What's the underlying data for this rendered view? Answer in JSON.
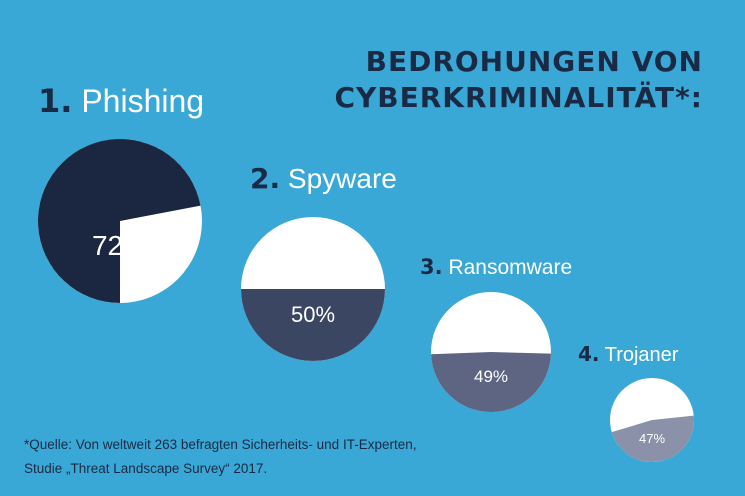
{
  "title": {
    "line1": "BEDROHUNGEN VON",
    "line2": "CYBERKRIMINALITÄT*:"
  },
  "chart_data": {
    "type": "pie",
    "title": "BEDROHUNGEN VON CYBERKRIMINALITÄT*:",
    "items": [
      {
        "rank": "1.",
        "name": "Phishing",
        "value": 72,
        "label": "72%",
        "color": "#1b2640"
      },
      {
        "rank": "2.",
        "name": "Spyware",
        "value": 50,
        "label": "50%",
        "color": "#3b4663"
      },
      {
        "rank": "3.",
        "name": "Ransomware",
        "value": 49,
        "label": "49%",
        "color": "#5d6583"
      },
      {
        "rank": "4.",
        "name": "Trojaner",
        "value": 47,
        "label": "47%",
        "color": "#8a91a8"
      }
    ],
    "remainder_color": "#ffffff",
    "background_color": "#3aa8d6"
  },
  "footnote": {
    "line1": "*Quelle: Von weltweit 263 befragten Sicherheits- und IT-Experten,",
    "line2": "Studie „Threat Landscape Survey“ 2017."
  }
}
